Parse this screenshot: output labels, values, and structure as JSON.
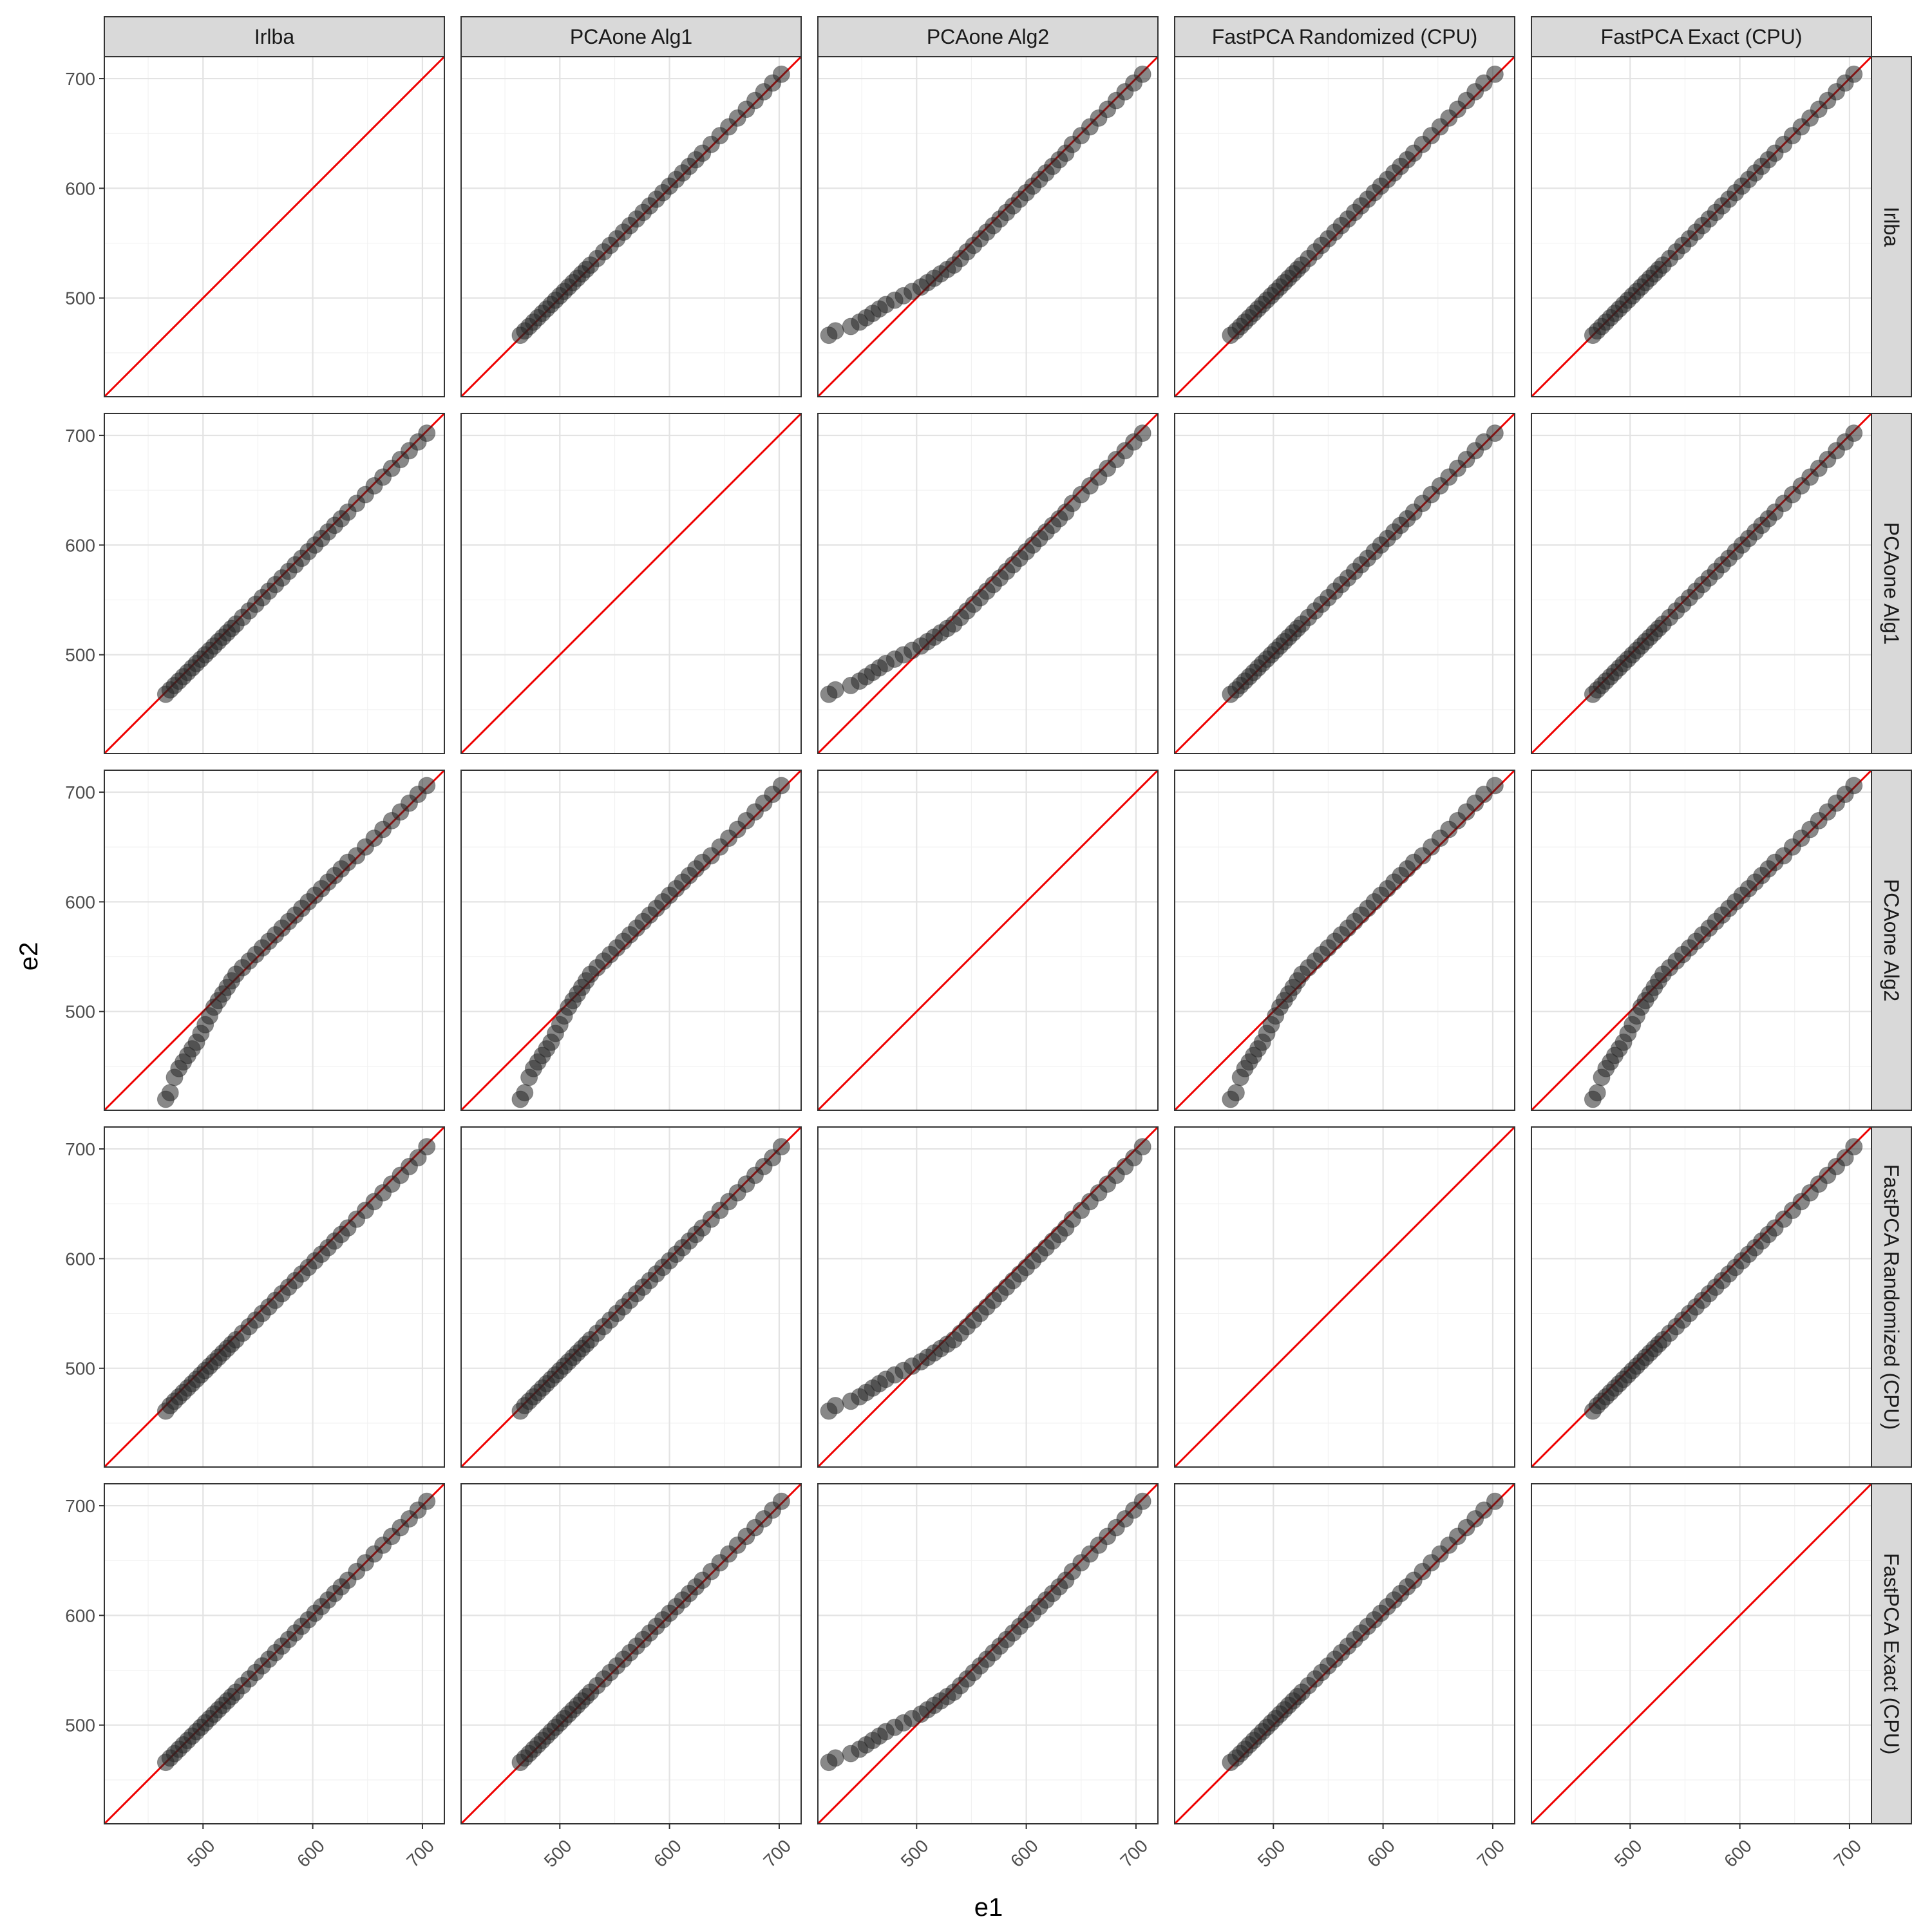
{
  "chart_data": {
    "type": "scatter",
    "layout": "facet-grid",
    "xlabel": "e1",
    "ylabel": "e2",
    "column_facets": [
      "Irlba",
      "PCAone Alg1",
      "PCAone Alg2",
      "FastPCA Randomized (CPU)",
      "FastPCA Exact (CPU)"
    ],
    "row_facets": [
      "Irlba",
      "PCAone Alg1",
      "PCAone Alg2",
      "FastPCA Randomized (CPU)",
      "FastPCA Exact (CPU)"
    ],
    "xlim": [
      410,
      720
    ],
    "ylim": [
      410,
      720
    ],
    "xticks": [
      500,
      600,
      700
    ],
    "yticks": [
      500,
      600,
      700
    ],
    "reference_line": {
      "slope": 1,
      "intercept": 0,
      "color": "#ee0000"
    },
    "grid": true,
    "point_color": "#262626",
    "eigenvalues": {
      "Irlba": [
        466,
        470,
        474,
        478,
        482,
        486,
        490,
        494,
        498,
        502,
        506,
        510,
        514,
        518,
        522,
        526,
        530,
        536,
        542,
        548,
        554,
        560,
        566,
        572,
        578,
        584,
        590,
        596,
        602,
        608,
        614,
        620,
        626,
        632,
        640,
        648,
        656,
        664,
        672,
        680,
        688,
        696,
        704
      ],
      "PCAone Alg1": [
        464,
        468,
        472,
        476,
        480,
        484,
        488,
        492,
        496,
        500,
        504,
        508,
        512,
        516,
        520,
        524,
        528,
        534,
        540,
        546,
        552,
        558,
        564,
        570,
        576,
        582,
        588,
        594,
        600,
        606,
        612,
        618,
        624,
        630,
        638,
        646,
        654,
        662,
        670,
        678,
        686,
        694,
        702
      ],
      "PCAone Alg2": [
        420,
        426,
        440,
        448,
        454,
        460,
        466,
        472,
        480,
        488,
        496,
        504,
        510,
        516,
        522,
        528,
        534,
        540,
        546,
        552,
        558,
        564,
        570,
        576,
        582,
        588,
        594,
        600,
        606,
        612,
        618,
        624,
        630,
        636,
        642,
        650,
        658,
        666,
        674,
        682,
        690,
        698,
        706
      ],
      "FastPCA Randomized (CPU)": [
        461,
        466,
        470,
        474,
        478,
        482,
        486,
        490,
        494,
        498,
        502,
        506,
        510,
        514,
        518,
        522,
        526,
        532,
        538,
        544,
        550,
        556,
        562,
        568,
        574,
        580,
        586,
        592,
        598,
        604,
        610,
        616,
        622,
        628,
        636,
        644,
        652,
        660,
        668,
        676,
        684,
        692,
        702
      ],
      "FastPCA Exact (CPU)": [
        466,
        470,
        474,
        478,
        482,
        486,
        490,
        494,
        498,
        502,
        506,
        510,
        514,
        518,
        522,
        526,
        530,
        536,
        542,
        548,
        554,
        560,
        566,
        572,
        578,
        584,
        590,
        596,
        602,
        608,
        614,
        620,
        626,
        632,
        640,
        648,
        656,
        664,
        672,
        680,
        688,
        696,
        704
      ]
    }
  }
}
